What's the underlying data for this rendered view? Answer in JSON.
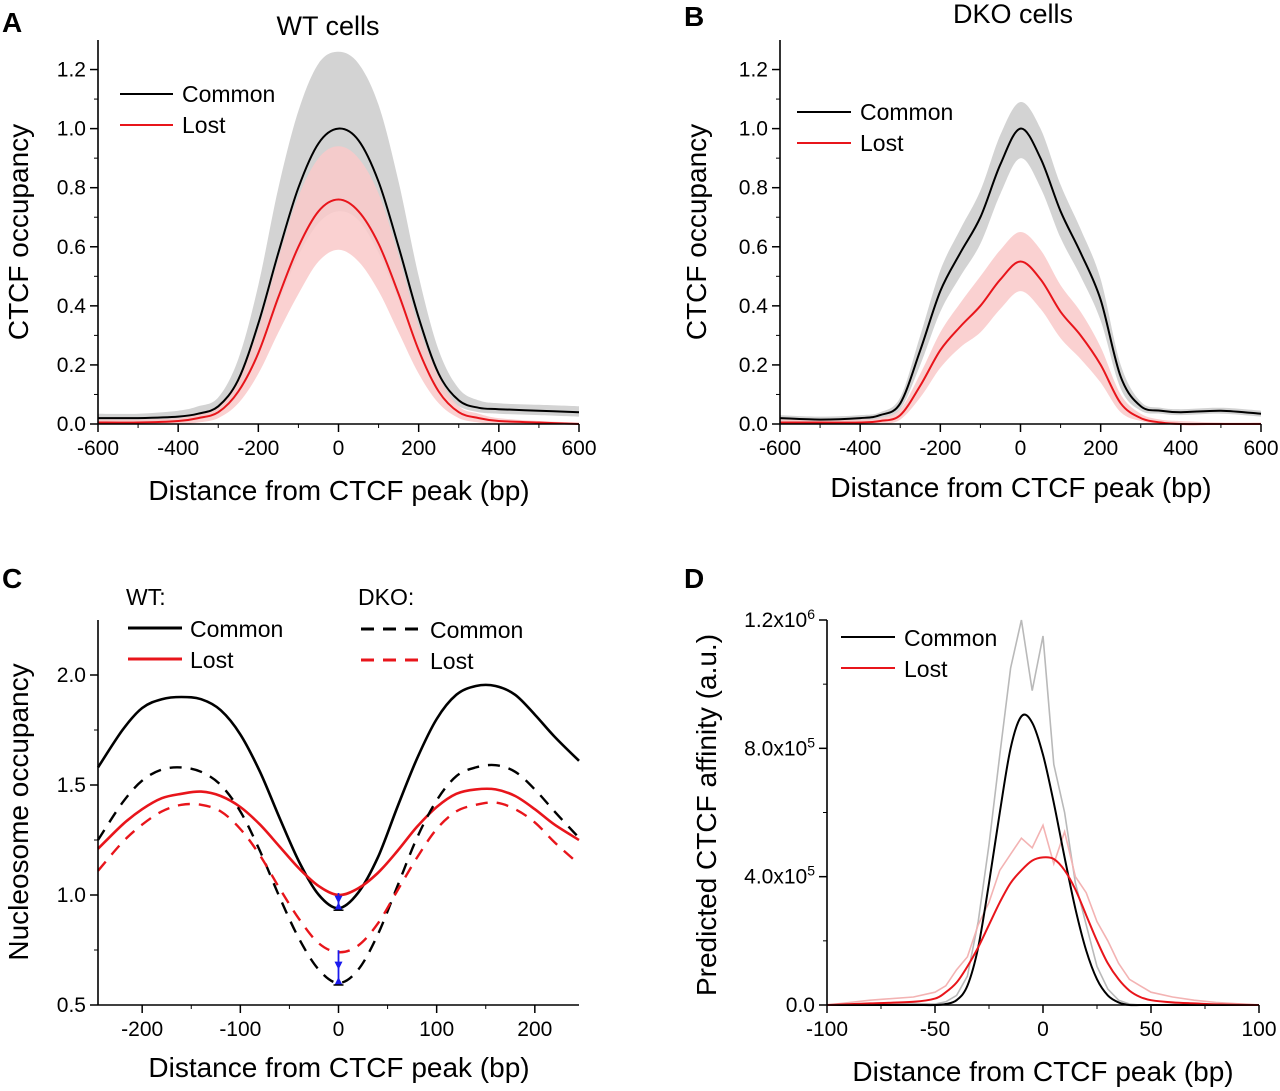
{
  "colors": {
    "common": "#000000",
    "lost": "#e8151b",
    "common_band": "#d3d3d3",
    "lost_band": "#f9c9c9",
    "arrow": "#1a1aee",
    "common_raw": "#b9b9b9",
    "lost_raw": "#f3b3b3"
  },
  "panels": [
    {
      "letter": "A",
      "title": "WT cells",
      "xlabel": "Distance from CTCF peak (bp)",
      "ylabel": "CTCF occupancy",
      "xticks": [
        "-600",
        "-400",
        "-200",
        "0",
        "200",
        "400",
        "600"
      ],
      "yticks": [
        "0.0",
        "0.2",
        "0.4",
        "0.6",
        "0.8",
        "1.0",
        "1.2"
      ],
      "legend": [
        {
          "label": "Common"
        },
        {
          "label": "Lost"
        }
      ]
    },
    {
      "letter": "B",
      "title": "DKO cells",
      "xlabel": "Distance from CTCF peak (bp)",
      "ylabel": "CTCF occupancy",
      "xticks": [
        "-600",
        "-400",
        "-200",
        "0",
        "200",
        "400",
        "600"
      ],
      "yticks": [
        "0.0",
        "0.2",
        "0.4",
        "0.6",
        "0.8",
        "1.0",
        "1.2"
      ],
      "legend": [
        {
          "label": "Common"
        },
        {
          "label": "Lost"
        }
      ]
    },
    {
      "letter": "C",
      "title": "",
      "xlabel": "Distance from CTCF peak (bp)",
      "ylabel": "Nucleosome occupancy",
      "xticks": [
        "-200",
        "-100",
        "0",
        "100",
        "200"
      ],
      "yticks": [
        "0.5",
        "1.0",
        "1.5",
        "2.0"
      ],
      "legend_groups": [
        {
          "header": "WT:",
          "items": [
            {
              "label": "Common"
            },
            {
              "label": "Lost"
            }
          ]
        },
        {
          "header": "DKO:",
          "items": [
            {
              "label": "Common"
            },
            {
              "label": "Lost"
            }
          ]
        }
      ]
    },
    {
      "letter": "D",
      "title": "",
      "xlabel": "Distance from CTCF peak (bp)",
      "ylabel": "Predicted CTCF affinity (a.u.)",
      "xticks": [
        "-100",
        "-50",
        "0",
        "50",
        "100"
      ],
      "yticks": [
        {
          "base": "0.0",
          "exp": ""
        },
        {
          "base": "4.0x10",
          "exp": "5"
        },
        {
          "base": "8.0x10",
          "exp": "5"
        },
        {
          "base": "1.2x10",
          "exp": "6"
        }
      ],
      "legend": [
        {
          "label": "Common"
        },
        {
          "label": "Lost"
        }
      ]
    }
  ],
  "chart_data": [
    {
      "panel": "A",
      "type": "line",
      "title": "WT cells",
      "xlabel": "Distance from CTCF peak (bp)",
      "ylabel": "CTCF occupancy",
      "xlim": [
        -600,
        600
      ],
      "ylim": [
        0,
        1.3
      ],
      "legend_position": "top-left",
      "x": [
        -600,
        -500,
        -400,
        -350,
        -300,
        -250,
        -200,
        -150,
        -100,
        -50,
        0,
        50,
        100,
        150,
        200,
        250,
        300,
        350,
        400,
        500,
        600
      ],
      "series": [
        {
          "name": "Common",
          "values": [
            0.02,
            0.02,
            0.025,
            0.035,
            0.06,
            0.15,
            0.34,
            0.58,
            0.8,
            0.95,
            1.0,
            0.96,
            0.82,
            0.6,
            0.36,
            0.17,
            0.08,
            0.055,
            0.05,
            0.045,
            0.04
          ],
          "lower": [
            0.0,
            0.0,
            0.005,
            0.015,
            0.035,
            0.1,
            0.24,
            0.41,
            0.57,
            0.68,
            0.72,
            0.69,
            0.58,
            0.42,
            0.25,
            0.12,
            0.06,
            0.04,
            0.035,
            0.03,
            0.025
          ],
          "upper": [
            0.035,
            0.035,
            0.045,
            0.06,
            0.09,
            0.22,
            0.47,
            0.8,
            1.06,
            1.22,
            1.26,
            1.22,
            1.08,
            0.82,
            0.5,
            0.25,
            0.12,
            0.08,
            0.07,
            0.065,
            0.06
          ]
        },
        {
          "name": "Lost",
          "values": [
            0.005,
            0.005,
            0.01,
            0.02,
            0.04,
            0.11,
            0.24,
            0.43,
            0.6,
            0.72,
            0.76,
            0.72,
            0.61,
            0.44,
            0.25,
            0.11,
            0.04,
            0.02,
            0.01,
            0.005,
            0.0
          ],
          "lower": [
            0.0,
            0.0,
            0.0,
            0.005,
            0.02,
            0.07,
            0.17,
            0.31,
            0.44,
            0.55,
            0.59,
            0.55,
            0.45,
            0.31,
            0.17,
            0.07,
            0.02,
            0.005,
            0.0,
            0.0,
            0.0
          ],
          "upper": [
            0.015,
            0.015,
            0.02,
            0.035,
            0.06,
            0.15,
            0.32,
            0.56,
            0.77,
            0.9,
            0.94,
            0.9,
            0.78,
            0.57,
            0.33,
            0.16,
            0.06,
            0.035,
            0.02,
            0.01,
            0.005
          ]
        }
      ]
    },
    {
      "panel": "B",
      "type": "line",
      "title": "DKO cells",
      "xlabel": "Distance from CTCF peak (bp)",
      "ylabel": "CTCF occupancy",
      "xlim": [
        -600,
        600
      ],
      "ylim": [
        0,
        1.3
      ],
      "legend_position": "top-left",
      "x": [
        -600,
        -500,
        -400,
        -350,
        -300,
        -250,
        -200,
        -150,
        -100,
        -50,
        0,
        50,
        100,
        150,
        200,
        250,
        300,
        350,
        400,
        500,
        600
      ],
      "series": [
        {
          "name": "Common",
          "values": [
            0.02,
            0.015,
            0.02,
            0.03,
            0.07,
            0.25,
            0.45,
            0.58,
            0.7,
            0.88,
            1.0,
            0.9,
            0.72,
            0.58,
            0.42,
            0.16,
            0.06,
            0.045,
            0.04,
            0.045,
            0.035
          ],
          "lower": [
            0.01,
            0.005,
            0.01,
            0.02,
            0.05,
            0.2,
            0.38,
            0.5,
            0.61,
            0.78,
            0.9,
            0.8,
            0.63,
            0.5,
            0.35,
            0.12,
            0.045,
            0.035,
            0.03,
            0.035,
            0.025
          ],
          "upper": [
            0.03,
            0.025,
            0.03,
            0.04,
            0.09,
            0.3,
            0.52,
            0.66,
            0.79,
            0.98,
            1.09,
            1.0,
            0.81,
            0.66,
            0.49,
            0.2,
            0.075,
            0.055,
            0.05,
            0.055,
            0.045
          ]
        },
        {
          "name": "Lost",
          "values": [
            0.005,
            0.005,
            0.005,
            0.01,
            0.03,
            0.13,
            0.25,
            0.33,
            0.4,
            0.49,
            0.55,
            0.49,
            0.38,
            0.3,
            0.2,
            0.07,
            0.02,
            0.005,
            0.0,
            0.0,
            0.0
          ],
          "lower": [
            0.0,
            0.0,
            0.0,
            0.0,
            0.015,
            0.09,
            0.19,
            0.26,
            0.31,
            0.39,
            0.45,
            0.39,
            0.29,
            0.22,
            0.14,
            0.04,
            0.01,
            0.0,
            0.0,
            0.0,
            0.0
          ],
          "upper": [
            0.015,
            0.015,
            0.015,
            0.02,
            0.05,
            0.17,
            0.31,
            0.41,
            0.5,
            0.59,
            0.65,
            0.59,
            0.47,
            0.38,
            0.26,
            0.1,
            0.035,
            0.015,
            0.01,
            0.005,
            0.005
          ]
        }
      ]
    },
    {
      "panel": "C",
      "type": "line",
      "xlabel": "Distance from CTCF peak (bp)",
      "ylabel": "Nucleosome occupancy",
      "xlim": [
        -245,
        245
      ],
      "ylim": [
        0.5,
        2.25
      ],
      "legend_position": "top",
      "x": [
        -245,
        -220,
        -200,
        -180,
        -160,
        -140,
        -120,
        -100,
        -80,
        -60,
        -40,
        -20,
        0,
        20,
        40,
        60,
        80,
        100,
        120,
        140,
        160,
        180,
        200,
        220,
        245
      ],
      "series": [
        {
          "name": "WT Common",
          "values": [
            1.58,
            1.75,
            1.85,
            1.89,
            1.9,
            1.89,
            1.84,
            1.73,
            1.56,
            1.35,
            1.15,
            1.0,
            0.94,
            1.01,
            1.17,
            1.4,
            1.62,
            1.8,
            1.91,
            1.95,
            1.95,
            1.91,
            1.82,
            1.72,
            1.61
          ]
        },
        {
          "name": "WT Lost",
          "values": [
            1.21,
            1.32,
            1.39,
            1.44,
            1.46,
            1.47,
            1.45,
            1.4,
            1.32,
            1.22,
            1.12,
            1.04,
            1.0,
            1.03,
            1.1,
            1.2,
            1.31,
            1.4,
            1.46,
            1.48,
            1.48,
            1.45,
            1.39,
            1.32,
            1.25
          ]
        },
        {
          "name": "DKO Common",
          "values": [
            1.25,
            1.42,
            1.52,
            1.57,
            1.58,
            1.56,
            1.5,
            1.38,
            1.2,
            0.99,
            0.8,
            0.66,
            0.6,
            0.66,
            0.82,
            1.04,
            1.26,
            1.43,
            1.54,
            1.58,
            1.59,
            1.56,
            1.48,
            1.38,
            1.26
          ]
        },
        {
          "name": "DKO Lost",
          "values": [
            1.11,
            1.24,
            1.32,
            1.38,
            1.41,
            1.41,
            1.38,
            1.3,
            1.18,
            1.03,
            0.89,
            0.78,
            0.74,
            0.77,
            0.87,
            1.02,
            1.17,
            1.3,
            1.38,
            1.41,
            1.42,
            1.39,
            1.33,
            1.24,
            1.14
          ]
        }
      ],
      "annotations": [
        {
          "type": "double-arrow",
          "x": 0,
          "from": 0.94,
          "to": 1.0
        },
        {
          "type": "double-arrow",
          "x": 0,
          "from": 0.6,
          "to": 0.74
        }
      ]
    },
    {
      "panel": "D",
      "type": "line",
      "xlabel": "Distance from CTCF peak (bp)",
      "ylabel": "Predicted CTCF affinity (a.u.)",
      "xlim": [
        -100,
        100
      ],
      "ylim": [
        0,
        1200000
      ],
      "legend_position": "top-left",
      "x": [
        -100,
        -80,
        -60,
        -50,
        -45,
        -40,
        -35,
        -30,
        -25,
        -20,
        -15,
        -10,
        -5,
        0,
        5,
        10,
        15,
        20,
        25,
        30,
        35,
        40,
        45,
        50,
        60,
        70,
        80,
        100
      ],
      "series": [
        {
          "name": "Common",
          "values": [
            0,
            0,
            0,
            0,
            3000,
            15000,
            60000,
            180000,
            380000,
            600000,
            800000,
            900000,
            880000,
            780000,
            630000,
            460000,
            300000,
            170000,
            80000,
            30000,
            8000,
            0,
            0,
            0,
            0,
            0,
            0,
            0
          ],
          "raw": [
            0,
            2000,
            5000,
            3000,
            10000,
            30000,
            90000,
            260000,
            500000,
            780000,
            1050000,
            1200000,
            980000,
            1150000,
            750000,
            600000,
            380000,
            250000,
            120000,
            50000,
            15000,
            3000,
            0,
            0,
            2000,
            0,
            0,
            0
          ]
        },
        {
          "name": "Lost",
          "values": [
            0,
            5000,
            10000,
            20000,
            40000,
            70000,
            120000,
            180000,
            250000,
            320000,
            380000,
            420000,
            450000,
            460000,
            455000,
            420000,
            360000,
            280000,
            200000,
            130000,
            80000,
            45000,
            25000,
            15000,
            8000,
            5000,
            2000,
            0
          ],
          "raw": [
            0,
            15000,
            25000,
            40000,
            60000,
            110000,
            150000,
            250000,
            320000,
            420000,
            470000,
            520000,
            490000,
            560000,
            440000,
            540000,
            400000,
            350000,
            260000,
            200000,
            130000,
            80000,
            60000,
            40000,
            25000,
            15000,
            8000,
            0
          ]
        }
      ]
    }
  ]
}
